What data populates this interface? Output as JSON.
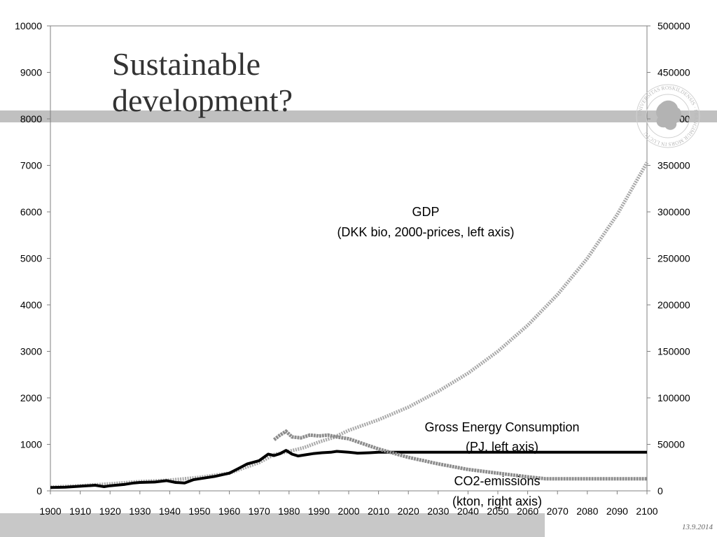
{
  "slide": {
    "title_line1": "Sustainable",
    "title_line2": "development?",
    "footer_date": "13.9.2014",
    "logo_icon": "university-seal-icon",
    "seal_text": "UNIVERSITAS ROSKILDENSIS · FRANGIMUR MORS IN LUCTU"
  },
  "chart_data": {
    "type": "line",
    "x_ticks": [
      1900,
      1910,
      1920,
      1930,
      1940,
      1950,
      1960,
      1970,
      1980,
      1990,
      2000,
      2010,
      2020,
      2030,
      2040,
      2050,
      2060,
      2070,
      2080,
      2090,
      2100
    ],
    "y_left": {
      "min": 0,
      "max": 10000,
      "ticks": [
        0,
        1000,
        2000,
        3000,
        4000,
        5000,
        6000,
        7000,
        8000,
        9000,
        10000
      ]
    },
    "y_right": {
      "min": 0,
      "max": 500000,
      "ticks": [
        0,
        50000,
        100000,
        150000,
        200000,
        250000,
        300000,
        350000,
        400000,
        450000,
        500000
      ]
    },
    "series": [
      {
        "key": "gdp",
        "axis": "left",
        "color": "#a8a8a8",
        "points": [
          [
            1900,
            80
          ],
          [
            1910,
            110
          ],
          [
            1920,
            150
          ],
          [
            1930,
            200
          ],
          [
            1940,
            230
          ],
          [
            1950,
            290
          ],
          [
            1960,
            380
          ],
          [
            1970,
            610
          ],
          [
            1975,
            780
          ],
          [
            1980,
            850
          ],
          [
            1985,
            930
          ],
          [
            1990,
            1050
          ],
          [
            1995,
            1150
          ],
          [
            2000,
            1300
          ],
          [
            2010,
            1530
          ],
          [
            2020,
            1800
          ],
          [
            2030,
            2140
          ],
          [
            2040,
            2530
          ],
          [
            2050,
            3000
          ],
          [
            2060,
            3560
          ],
          [
            2070,
            4220
          ],
          [
            2080,
            5000
          ],
          [
            2090,
            5940
          ],
          [
            2095,
            6500
          ],
          [
            2100,
            7060
          ]
        ]
      },
      {
        "key": "energy",
        "axis": "left",
        "color": "#000000",
        "points": [
          [
            1900,
            70
          ],
          [
            1905,
            80
          ],
          [
            1910,
            100
          ],
          [
            1915,
            120
          ],
          [
            1918,
            90
          ],
          [
            1920,
            110
          ],
          [
            1925,
            140
          ],
          [
            1928,
            170
          ],
          [
            1930,
            180
          ],
          [
            1935,
            190
          ],
          [
            1939,
            220
          ],
          [
            1942,
            180
          ],
          [
            1945,
            170
          ],
          [
            1948,
            240
          ],
          [
            1950,
            260
          ],
          [
            1955,
            310
          ],
          [
            1960,
            380
          ],
          [
            1963,
            480
          ],
          [
            1966,
            580
          ],
          [
            1970,
            650
          ],
          [
            1973,
            790
          ],
          [
            1975,
            760
          ],
          [
            1977,
            800
          ],
          [
            1979,
            870
          ],
          [
            1981,
            790
          ],
          [
            1983,
            750
          ],
          [
            1986,
            780
          ],
          [
            1988,
            800
          ],
          [
            1991,
            820
          ],
          [
            1994,
            830
          ],
          [
            1996,
            850
          ],
          [
            1998,
            840
          ],
          [
            2000,
            830
          ],
          [
            2003,
            810
          ],
          [
            2007,
            820
          ],
          [
            2010,
            830
          ],
          [
            2100,
            830
          ]
        ]
      },
      {
        "key": "co2",
        "axis": "right",
        "color": "#8c8c8c",
        "points": [
          [
            1975,
            55000
          ],
          [
            1977,
            60000
          ],
          [
            1979,
            64000
          ],
          [
            1981,
            58000
          ],
          [
            1984,
            57000
          ],
          [
            1987,
            60000
          ],
          [
            1990,
            59000
          ],
          [
            1993,
            60000
          ],
          [
            1996,
            58000
          ],
          [
            2000,
            56000
          ],
          [
            2010,
            45000
          ],
          [
            2020,
            36000
          ],
          [
            2030,
            29000
          ],
          [
            2040,
            23000
          ],
          [
            2050,
            19000
          ],
          [
            2060,
            15000
          ],
          [
            2066,
            13000
          ],
          [
            2070,
            13000
          ],
          [
            2100,
            13000
          ]
        ]
      }
    ],
    "annotations": {
      "gdp_line1": "GDP",
      "gdp_line2": "(DKK bio, 2000-prices, left axis)",
      "energy_line1": "Gross Energy Consumption",
      "energy_line2": "(PJ, left axis)",
      "co2_line1": "CO2-emissions",
      "co2_line2": "(kton, right axis)"
    }
  }
}
